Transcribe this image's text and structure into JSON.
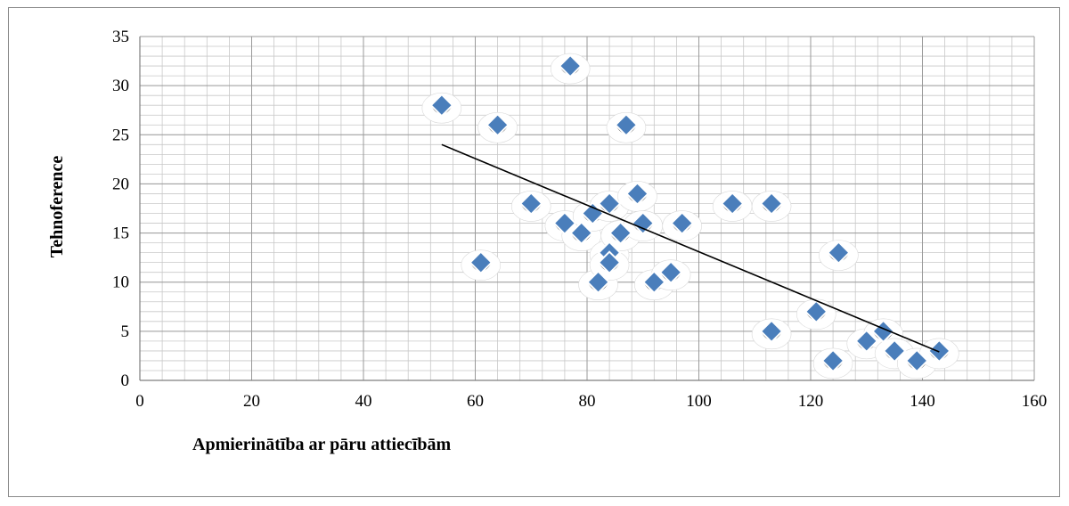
{
  "chart_data": {
    "type": "scatter",
    "xlabel": "Apmierinātība ar pāru attiecībām",
    "ylabel": "Tehnoference",
    "xlim": [
      0,
      160
    ],
    "ylim": [
      0,
      35
    ],
    "x_ticks": [
      "0",
      "20",
      "40",
      "60",
      "80",
      "100",
      "120",
      "140",
      "160"
    ],
    "y_ticks": [
      "0",
      "5",
      "10",
      "15",
      "20",
      "25",
      "30",
      "35"
    ],
    "major_x_step": 20,
    "minor_x_step": 4,
    "major_y_step": 5,
    "minor_y_step": 1,
    "grid": true,
    "legend": "none",
    "marker": "diamond",
    "marker_color": "#4a7ebb",
    "trendline": {
      "type": "linear",
      "from": [
        54,
        24.0
      ],
      "to": [
        143,
        2.9
      ]
    },
    "points": [
      {
        "x": 54,
        "y": 28
      },
      {
        "x": 61,
        "y": 12
      },
      {
        "x": 64,
        "y": 26
      },
      {
        "x": 70,
        "y": 18
      },
      {
        "x": 76,
        "y": 16
      },
      {
        "x": 77,
        "y": 32
      },
      {
        "x": 79,
        "y": 15
      },
      {
        "x": 81,
        "y": 17
      },
      {
        "x": 82,
        "y": 10
      },
      {
        "x": 84,
        "y": 18
      },
      {
        "x": 84,
        "y": 13
      },
      {
        "x": 84,
        "y": 12
      },
      {
        "x": 86,
        "y": 15
      },
      {
        "x": 87,
        "y": 26
      },
      {
        "x": 89,
        "y": 19
      },
      {
        "x": 90,
        "y": 16
      },
      {
        "x": 92,
        "y": 10
      },
      {
        "x": 95,
        "y": 11
      },
      {
        "x": 97,
        "y": 16
      },
      {
        "x": 106,
        "y": 18
      },
      {
        "x": 113,
        "y": 18
      },
      {
        "x": 113,
        "y": 5
      },
      {
        "x": 121,
        "y": 7
      },
      {
        "x": 124,
        "y": 2
      },
      {
        "x": 125,
        "y": 13
      },
      {
        "x": 130,
        "y": 4
      },
      {
        "x": 133,
        "y": 5
      },
      {
        "x": 135,
        "y": 3
      },
      {
        "x": 139,
        "y": 2
      },
      {
        "x": 143,
        "y": 3
      }
    ]
  }
}
